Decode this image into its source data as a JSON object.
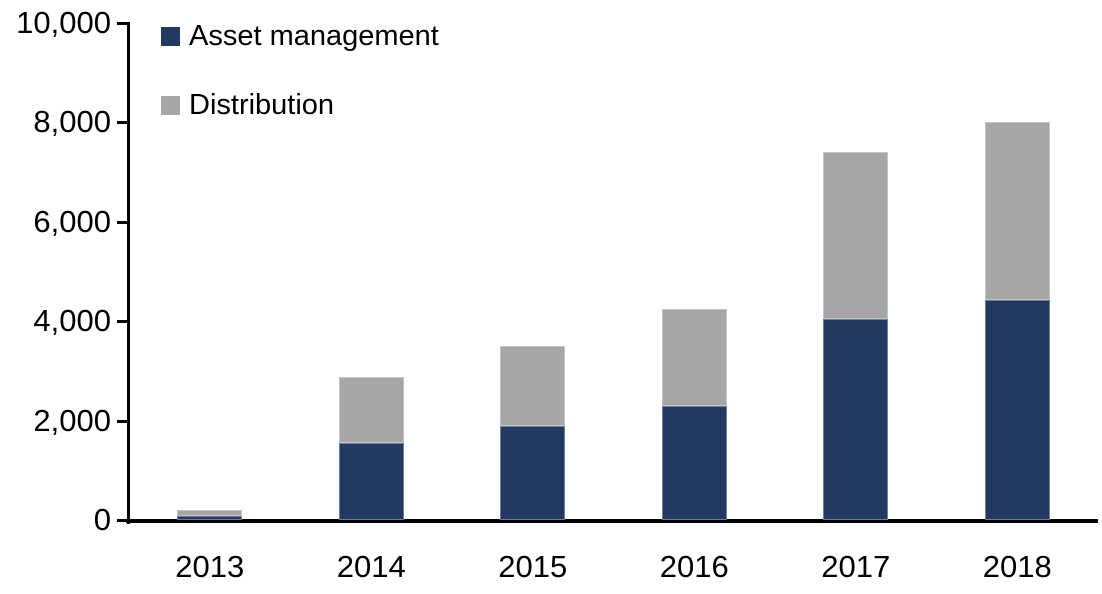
{
  "chart_data": {
    "type": "bar",
    "stacked": true,
    "title": "",
    "xlabel": "",
    "ylabel": "",
    "grid": false,
    "categories": [
      "2013",
      "2014",
      "2015",
      "2016",
      "2017",
      "2018"
    ],
    "series": [
      {
        "name": "Asset management",
        "color": "#223A62",
        "values": [
          90,
          1550,
          1900,
          2300,
          4050,
          4420
        ]
      },
      {
        "name": "Distribution",
        "color": "#A6A6A6",
        "values": [
          110,
          1330,
          1600,
          1950,
          3350,
          3580
        ]
      }
    ],
    "totals": [
      200,
      2880,
      3500,
      4250,
      7400,
      8000
    ],
    "ylim": [
      0,
      10000
    ],
    "yticks": [
      {
        "value": 0,
        "label": "0"
      },
      {
        "value": 2000,
        "label": "2,000"
      },
      {
        "value": 4000,
        "label": "4,000"
      },
      {
        "value": 6000,
        "label": "6,000"
      },
      {
        "value": 8000,
        "label": "8,000"
      },
      {
        "value": 10000,
        "label": "10,000"
      }
    ],
    "legend_position": "top-left-inside",
    "colors": {
      "axis": "#000000",
      "text": "#000000",
      "background": "#FFFFFF"
    }
  }
}
